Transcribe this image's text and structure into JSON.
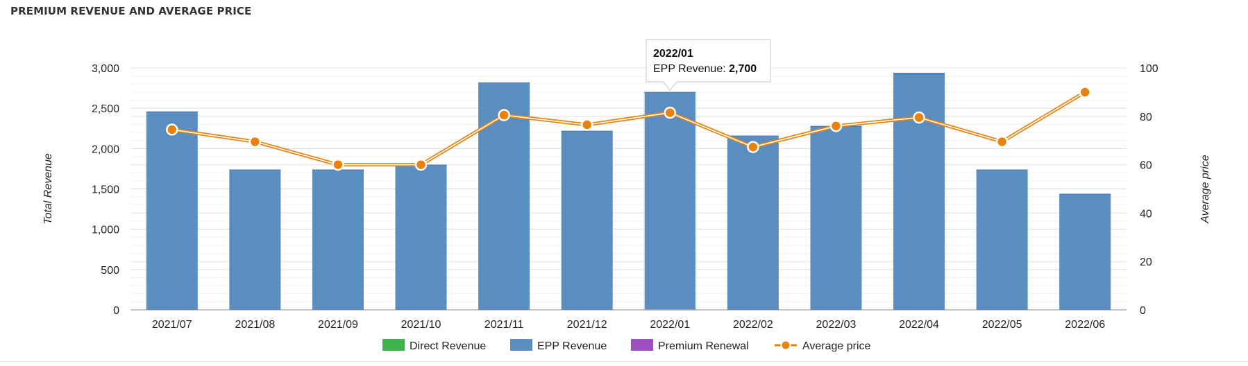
{
  "panel": {
    "title": "PREMIUM REVENUE AND AVERAGE PRICE"
  },
  "chart_data": {
    "type": "bar",
    "categories": [
      "2021/07",
      "2021/08",
      "2021/09",
      "2021/10",
      "2021/11",
      "2021/12",
      "2022/01",
      "2022/02",
      "2022/03",
      "2022/04",
      "2022/05",
      "2022/06"
    ],
    "series": [
      {
        "name": "Direct Revenue",
        "type": "bar",
        "color": "#3cb44b",
        "values": [
          0,
          0,
          0,
          0,
          0,
          0,
          0,
          0,
          0,
          0,
          0,
          0
        ]
      },
      {
        "name": "EPP Revenue",
        "type": "bar",
        "color": "#5a8dc0",
        "values": [
          2460,
          1740,
          1740,
          1800,
          2820,
          2220,
          2700,
          2160,
          2280,
          2940,
          1740,
          1440
        ]
      },
      {
        "name": "Premium Renewal",
        "type": "bar",
        "color": "#9b4fc0",
        "values": [
          0,
          0,
          0,
          0,
          0,
          0,
          0,
          0,
          0,
          0,
          0,
          0
        ]
      },
      {
        "name": "Average price",
        "type": "line",
        "axis": "right",
        "color": "#e8820c",
        "values": [
          74.5,
          69.5,
          60,
          60,
          80.5,
          76.5,
          81.5,
          67.3,
          76,
          79.5,
          69.5,
          90
        ]
      }
    ],
    "y_left": {
      "label": "Total Revenue",
      "range": [
        0,
        3000
      ],
      "ticks": [
        0,
        500,
        1000,
        1500,
        2000,
        2500,
        3000
      ],
      "tick_labels": [
        "0",
        "500",
        "1,000",
        "1,500",
        "2,000",
        "2,500",
        "3,000"
      ]
    },
    "y_right": {
      "label": "Average price",
      "range": [
        0,
        100
      ],
      "ticks": [
        0,
        20,
        40,
        60,
        80,
        100
      ],
      "tick_labels": [
        "0",
        "20",
        "40",
        "60",
        "80",
        "100"
      ]
    },
    "grid": true,
    "legend": "bottom-center",
    "tooltip": {
      "category": "2022/01",
      "title": "2022/01",
      "label": "EPP Revenue: ",
      "value": "2,700"
    }
  }
}
